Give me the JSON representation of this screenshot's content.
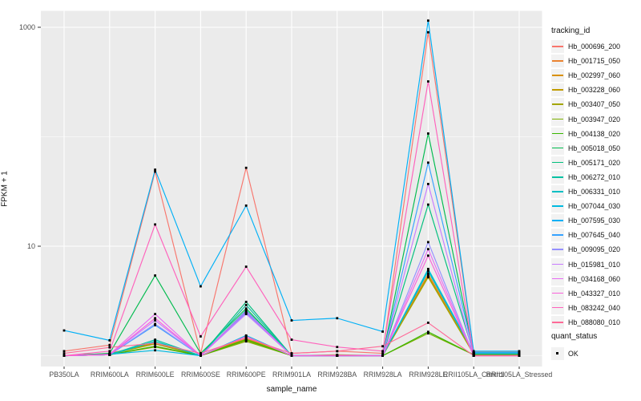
{
  "figure": {
    "background": "#FFFFFF",
    "panel_background": "#EBEBEB",
    "grid_color": "#FFFFFF",
    "tick_color": "#333333",
    "tick_label_color": "#4D4D4D",
    "point_color": "#000000",
    "legend_key_fill": "#F2F2F2"
  },
  "axes": {
    "y_title": "FPKM + 1",
    "x_title": "sample_name",
    "y_scale": "log10",
    "y_major_ticks": [
      {
        "label": "1000",
        "value": 1000
      },
      {
        "label": "10",
        "value": 10
      }
    ],
    "y_minor_gridlines": [
      100,
      1
    ]
  },
  "legend": {
    "tracking_title": "tracking_id",
    "quant_title": "quant_status",
    "quant_items": [
      {
        "label": "OK"
      }
    ]
  },
  "chart_data": {
    "type": "line",
    "title": "",
    "xlabel": "sample_name",
    "ylabel": "FPKM + 1",
    "y_axis": {
      "scale": "log10",
      "labeled_ticks": [
        1000,
        10
      ],
      "minor_gridlines": [
        100,
        1
      ],
      "approx_range": [
        1,
        1150
      ]
    },
    "legend_position": "right",
    "grid": true,
    "x_categories": [
      "PB350LA",
      "RRIM600LA",
      "RRIM600LE",
      "RRIM600SE",
      "RRIM600PE",
      "RRIM901LA",
      "RRIM928BA",
      "RRIM928LA",
      "RRIM928LE",
      "RRII105LA_Control",
      "RRII105LA_Stressed"
    ],
    "series": [
      {
        "name": "Hb_000696_200",
        "color": "#F8766D",
        "values": [
          1.1,
          1.25,
          48,
          1.05,
          52,
          1.05,
          1.1,
          1.05,
          900,
          1.08,
          1.08
        ]
      },
      {
        "name": "Hb_001715_050",
        "color": "#EA8331",
        "values": [
          1.0,
          1.05,
          1.3,
          1.0,
          1.5,
          1.0,
          1.02,
          1.0,
          5.6,
          1.05,
          1.05
        ]
      },
      {
        "name": "Hb_002997_060",
        "color": "#D89000",
        "values": [
          1.0,
          1.04,
          1.31,
          1.0,
          1.45,
          1.0,
          1.0,
          1.0,
          5.4,
          1.04,
          1.04
        ]
      },
      {
        "name": "Hb_003228_060",
        "color": "#C09B00",
        "values": [
          1.0,
          1.04,
          1.3,
          1.0,
          1.42,
          1.0,
          1.0,
          1.0,
          5.3,
          1.04,
          1.04
        ]
      },
      {
        "name": "Hb_003407_050",
        "color": "#A3A500",
        "values": [
          1.0,
          1.03,
          1.28,
          1.0,
          1.38,
          1.0,
          1.0,
          1.0,
          5.2,
          1.03,
          1.03
        ]
      },
      {
        "name": "Hb_003947_020",
        "color": "#7CAE00",
        "values": [
          1.0,
          1.02,
          1.2,
          1.0,
          1.35,
          1.0,
          1.0,
          1.0,
          1.6,
          1.02,
          1.02
        ]
      },
      {
        "name": "Hb_004138_020",
        "color": "#39B600",
        "values": [
          1.0,
          1.02,
          1.22,
          1.0,
          1.4,
          1.0,
          1.0,
          1.0,
          1.65,
          1.02,
          1.02
        ]
      },
      {
        "name": "Hb_005018_050",
        "color": "#00BB4E",
        "values": [
          1.0,
          1.05,
          5.4,
          1.05,
          2.7,
          1.0,
          1.0,
          1.0,
          107,
          1.05,
          1.05
        ]
      },
      {
        "name": "Hb_005171_020",
        "color": "#00BF7D",
        "values": [
          1.0,
          1.03,
          1.35,
          1.0,
          3.1,
          1.0,
          1.0,
          1.0,
          24,
          1.04,
          1.04
        ]
      },
      {
        "name": "Hb_006272_010",
        "color": "#00C1A3",
        "values": [
          1.0,
          1.02,
          1.4,
          1.0,
          2.9,
          1.0,
          1.0,
          1.0,
          6.1,
          1.05,
          1.05
        ]
      },
      {
        "name": "Hb_006331_010",
        "color": "#00BFC4",
        "values": [
          1.0,
          1.02,
          1.35,
          1.0,
          2.6,
          1.0,
          1.0,
          1.0,
          5.9,
          1.06,
          1.06
        ]
      },
      {
        "name": "Hb_007044_030",
        "color": "#00BAE0",
        "values": [
          1.0,
          1.03,
          1.12,
          1.0,
          1.53,
          1.0,
          1.0,
          1.0,
          6.2,
          1.07,
          1.07
        ]
      },
      {
        "name": "Hb_007595_030",
        "color": "#00B0F6",
        "values": [
          1.7,
          1.38,
          50,
          4.3,
          23.5,
          2.1,
          2.2,
          1.66,
          1150,
          1.1,
          1.1
        ]
      },
      {
        "name": "Hb_007645_040",
        "color": "#35A2FF",
        "values": [
          1.0,
          1.02,
          1.9,
          1.0,
          2.5,
          1.0,
          1.0,
          1.0,
          58,
          1.06,
          1.06
        ]
      },
      {
        "name": "Hb_009095_020",
        "color": "#9590FF",
        "values": [
          1.0,
          1.02,
          1.95,
          1.0,
          2.45,
          1.0,
          1.0,
          1.0,
          10.9,
          1.0,
          1.0
        ]
      },
      {
        "name": "Hb_015981_010",
        "color": "#C77CFF",
        "values": [
          1.0,
          1.02,
          2.1,
          1.0,
          2.4,
          1.0,
          1.0,
          1.0,
          37,
          1.0,
          1.0
        ]
      },
      {
        "name": "Hb_034168_060",
        "color": "#E76BF3",
        "values": [
          1.0,
          1.03,
          2.4,
          1.0,
          2.55,
          1.0,
          1.0,
          1.0,
          9.4,
          1.0,
          1.0
        ]
      },
      {
        "name": "Hb_043327_010",
        "color": "#FA62DB",
        "values": [
          1.0,
          1.02,
          2.2,
          1.0,
          1.5,
          1.0,
          1.0,
          1.0,
          8.2,
          1.0,
          1.0
        ]
      },
      {
        "name": "Hb_083242_040",
        "color": "#FF62BC",
        "values": [
          1.0,
          1.1,
          15.8,
          1.5,
          6.5,
          1.4,
          1.2,
          1.1,
          320,
          1.0,
          1.0
        ]
      },
      {
        "name": "Hb_088080_010",
        "color": "#FF6A98",
        "values": [
          1.05,
          1.19,
          1.3,
          1.05,
          1.45,
          1.05,
          1.1,
          1.22,
          2.0,
          1.0,
          1.0
        ]
      }
    ]
  }
}
